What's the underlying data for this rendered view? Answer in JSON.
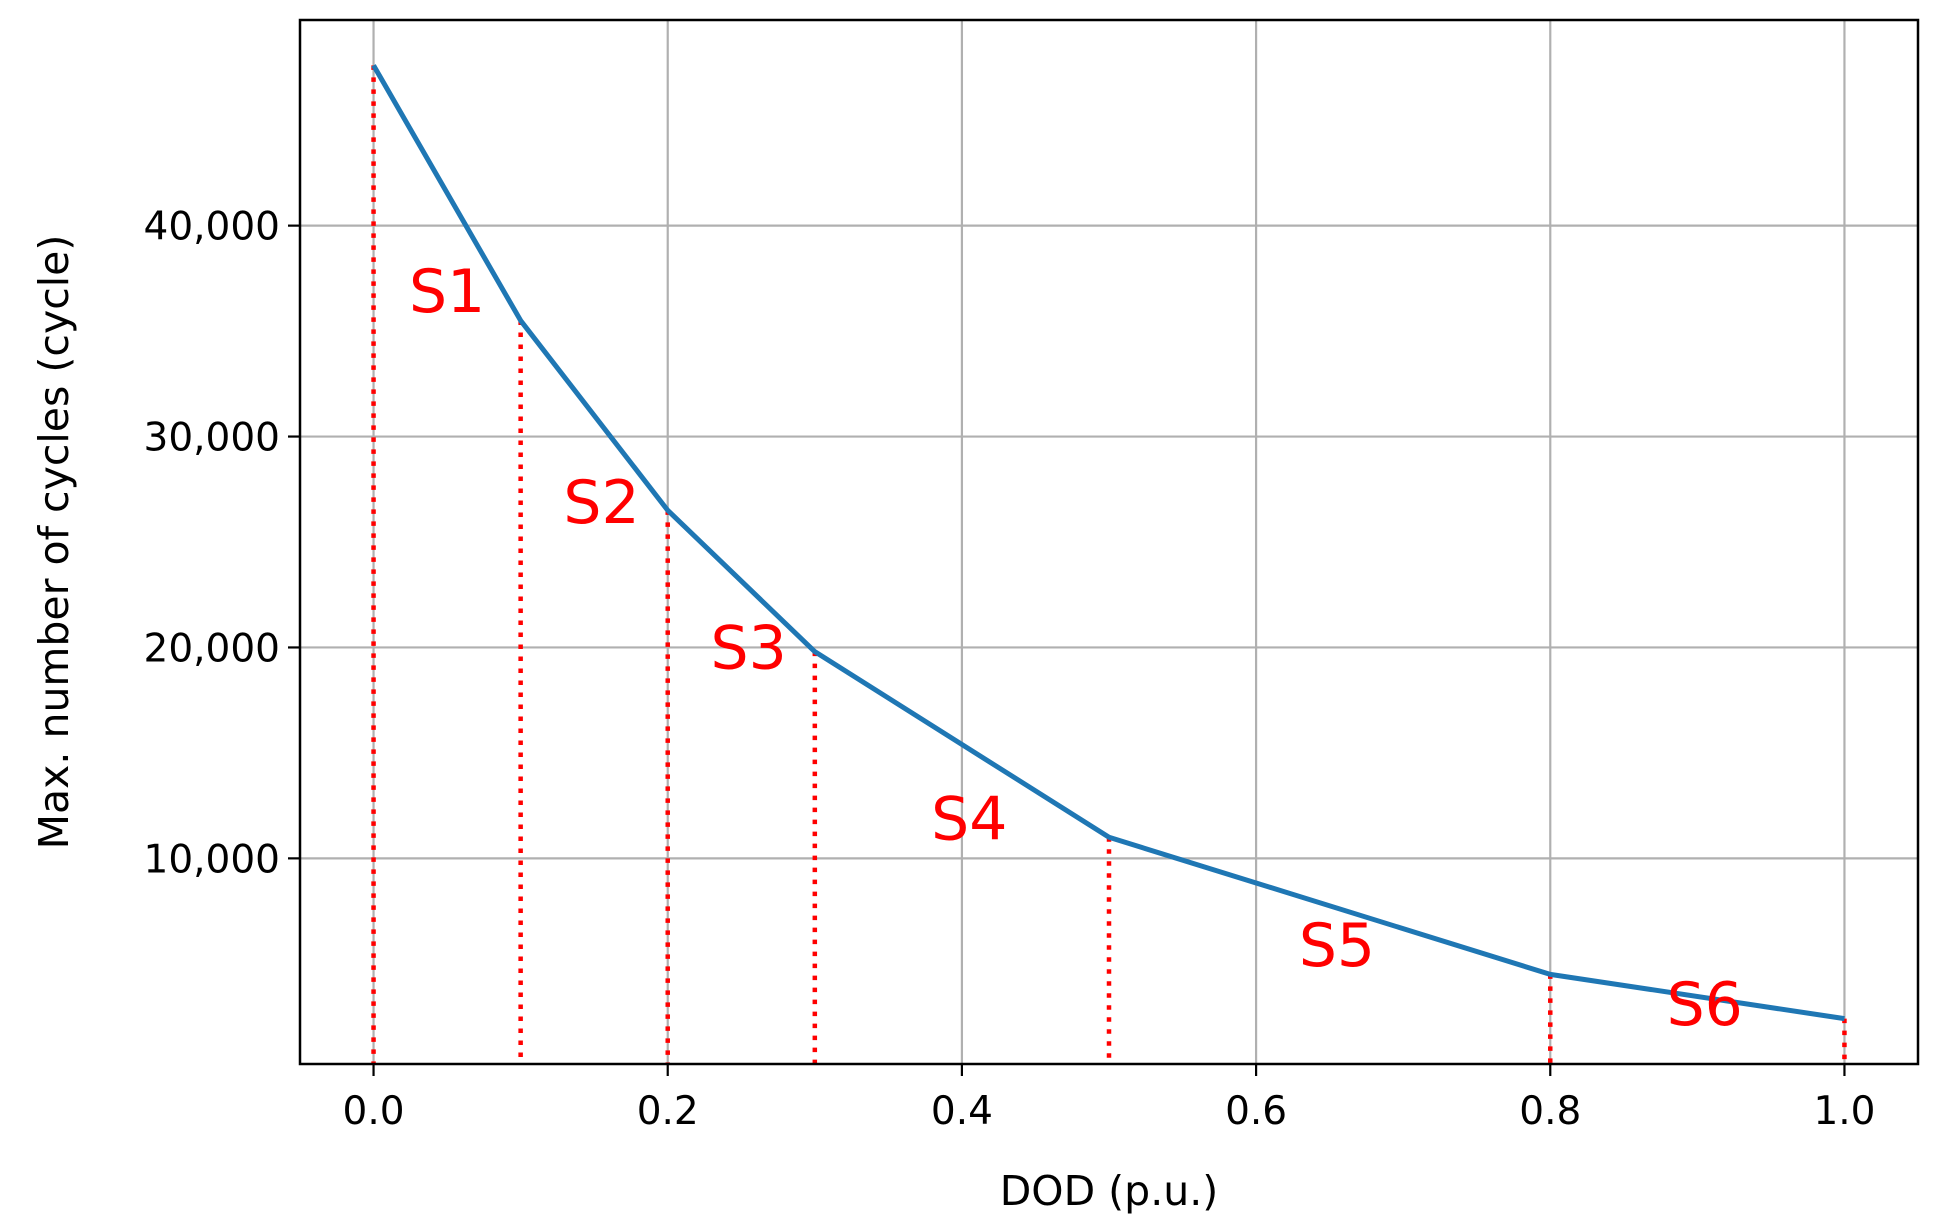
{
  "chart_data": {
    "type": "line",
    "title": "",
    "xlabel": "DOD (p.u.)",
    "ylabel": "Max. number of cycles (cycle)",
    "xlim": [
      -0.05,
      1.05
    ],
    "ylim": [
      250,
      49750
    ],
    "x_ticks": [
      0.0,
      0.2,
      0.4,
      0.6,
      0.8,
      1.0
    ],
    "x_tick_labels": [
      "0.0",
      "0.2",
      "0.4",
      "0.6",
      "0.8",
      "1.0"
    ],
    "y_ticks": [
      10000,
      20000,
      30000,
      40000
    ],
    "y_tick_labels": [
      "10,000",
      "20,000",
      "30,000",
      "40,000"
    ],
    "grid": true,
    "series": [
      {
        "color": "#1f77b4",
        "x": [
          0.0,
          0.1,
          0.2,
          0.3,
          0.5,
          0.8,
          1.0
        ],
        "y": [
          47600,
          35500,
          26500,
          19800,
          11000,
          4500,
          2400
        ]
      }
    ],
    "segment_lines": {
      "color": "#ff0000",
      "style": "dotted",
      "x": [
        0.0,
        0.1,
        0.2,
        0.3,
        0.5,
        0.8,
        1.0
      ]
    },
    "annotations": [
      {
        "text": "S1",
        "x": 0.05,
        "y": 35900,
        "color": "#ff0000"
      },
      {
        "text": "S2",
        "x": 0.155,
        "y": 25900,
        "color": "#ff0000"
      },
      {
        "text": "S3",
        "x": 0.255,
        "y": 19000,
        "color": "#ff0000"
      },
      {
        "text": "S4",
        "x": 0.405,
        "y": 10900,
        "color": "#ff0000"
      },
      {
        "text": "S5",
        "x": 0.655,
        "y": 4900,
        "color": "#ff0000"
      },
      {
        "text": "S6",
        "x": 0.905,
        "y": 2100,
        "color": "#ff0000"
      }
    ]
  }
}
